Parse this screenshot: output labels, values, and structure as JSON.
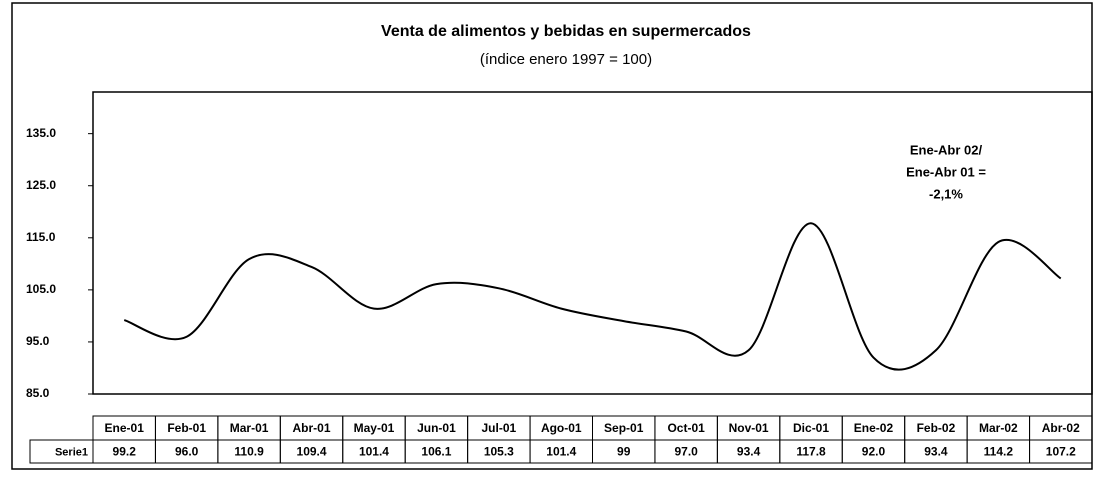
{
  "chart_data": {
    "type": "line",
    "title": "Venta de alimentos y bebidas en supermercados",
    "subtitle": "(índice enero 1997 = 100)",
    "annotation": [
      "Ene-Abr 02/",
      "Ene-Abr 01 =",
      "-2,1%"
    ],
    "categories": [
      "Ene-01",
      "Feb-01",
      "Mar-01",
      "Abr-01",
      "May-01",
      "Jun-01",
      "Jul-01",
      "Ago-01",
      "Sep-01",
      "Oct-01",
      "Nov-01",
      "Dic-01",
      "Ene-02",
      "Feb-02",
      "Mar-02",
      "Abr-02"
    ],
    "series": [
      {
        "name": "Serie1",
        "color": "#000000",
        "values": [
          99.2,
          96.0,
          110.9,
          109.4,
          101.4,
          106.1,
          105.3,
          101.4,
          99,
          97.0,
          93.4,
          117.8,
          92.0,
          93.4,
          114.2,
          107.2
        ],
        "value_labels": [
          "99.2",
          "96.0",
          "110.9",
          "109.4",
          "101.4",
          "106.1",
          "105.3",
          "101.4",
          "99",
          "97.0",
          "93.4",
          "117.8",
          "92.0",
          "93.4",
          "114.2",
          "107.2"
        ]
      }
    ],
    "ylim": [
      85,
      143
    ],
    "yticks": [
      {
        "value": 85,
        "label": "85.0"
      },
      {
        "value": 95,
        "label": "95.0"
      },
      {
        "value": 105,
        "label": "105.0"
      },
      {
        "value": 115,
        "label": "115.0"
      },
      {
        "value": 125,
        "label": "125.0"
      },
      {
        "value": 135,
        "label": "135.0"
      }
    ],
    "smooth": true
  }
}
